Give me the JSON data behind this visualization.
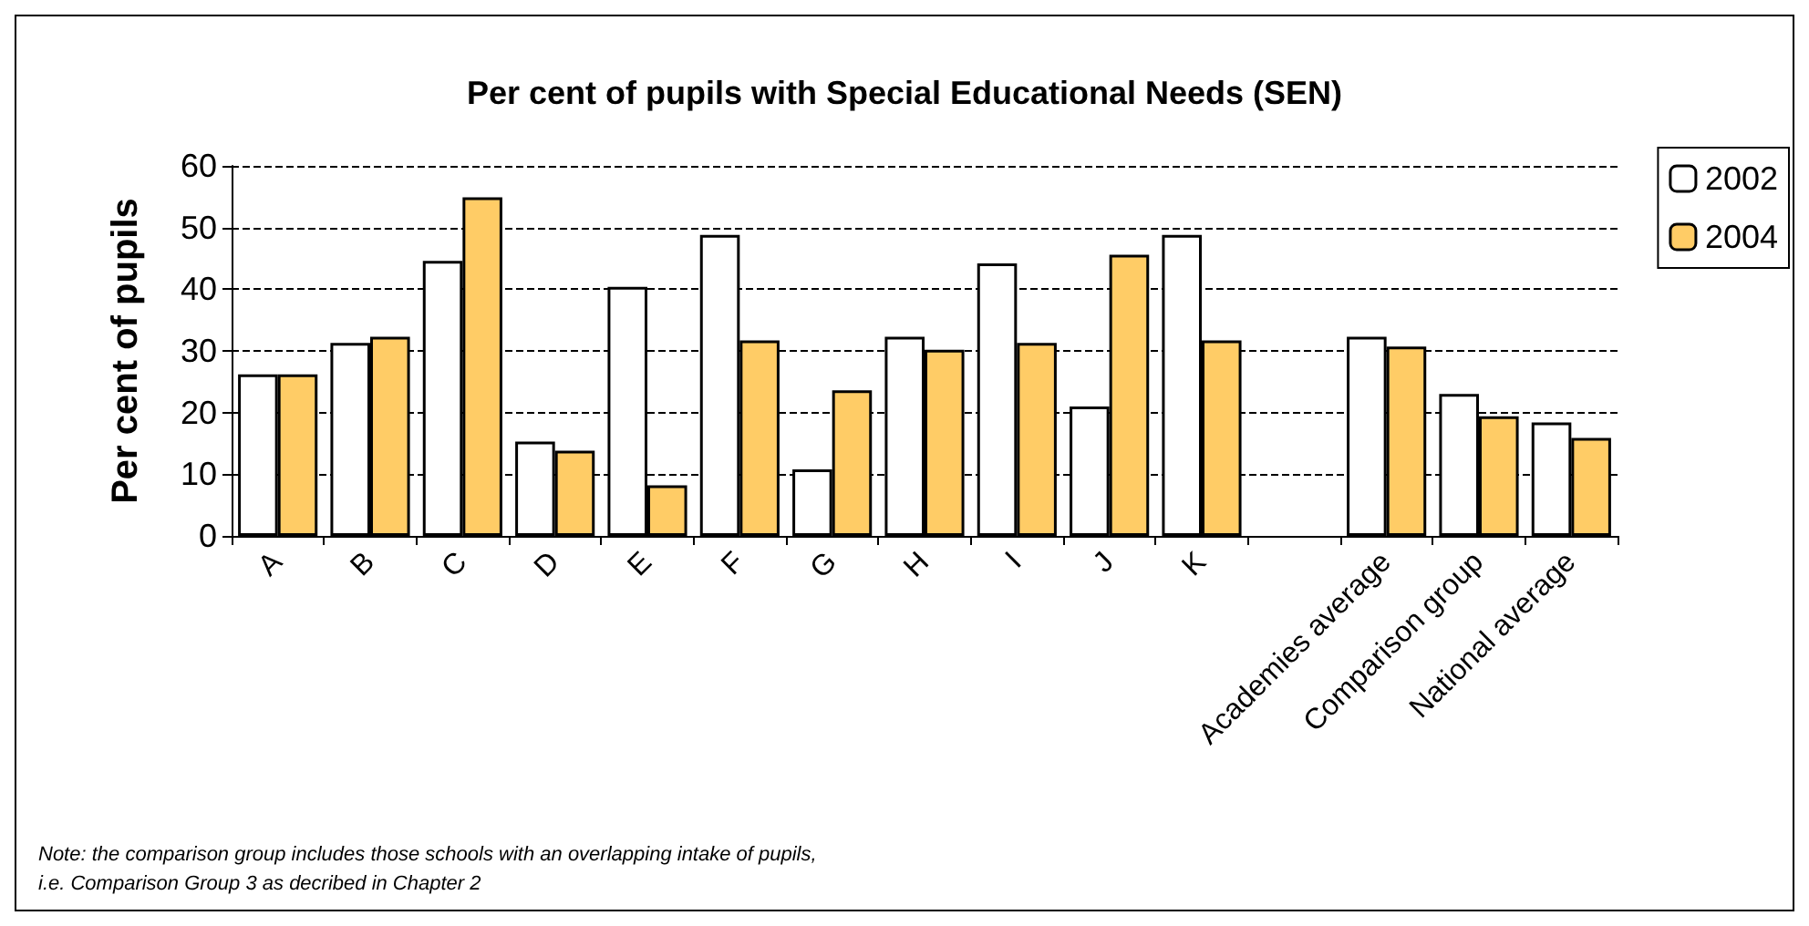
{
  "chart_data": {
    "type": "bar",
    "title": "Per cent of pupils with Special Educational Needs (SEN)",
    "ylabel": "Per cent of pupils",
    "categories": [
      "A",
      "B",
      "C",
      "D",
      "E",
      "F",
      "G",
      "H",
      "I",
      "J",
      "K",
      null,
      "Academies average",
      "Comparison group",
      "National average"
    ],
    "series": [
      {
        "name": "2002",
        "color": "#ffffff",
        "values": [
          26.2,
          31.3,
          44.6,
          15.3,
          40.4,
          48.8,
          10.8,
          32.3,
          44.2,
          21.0,
          48.8,
          null,
          32.3,
          23.0,
          18.4
        ]
      },
      {
        "name": "2004",
        "color": "#ffcc66",
        "values": [
          26.2,
          32.3,
          54.9,
          13.8,
          8.2,
          31.7,
          23.6,
          30.2,
          31.3,
          45.6,
          31.7,
          null,
          30.7,
          19.4,
          15.9
        ]
      }
    ],
    "ylim": [
      0,
      60
    ],
    "yticks": [
      0,
      10,
      20,
      30,
      40,
      50,
      60
    ],
    "grid": "y",
    "legend": "top right",
    "annotations": [
      "Note: the comparison group includes those schools with an overlapping intake of pupils,\ni.e. Comparison Group 3 as decribed in Chapter 2"
    ]
  }
}
